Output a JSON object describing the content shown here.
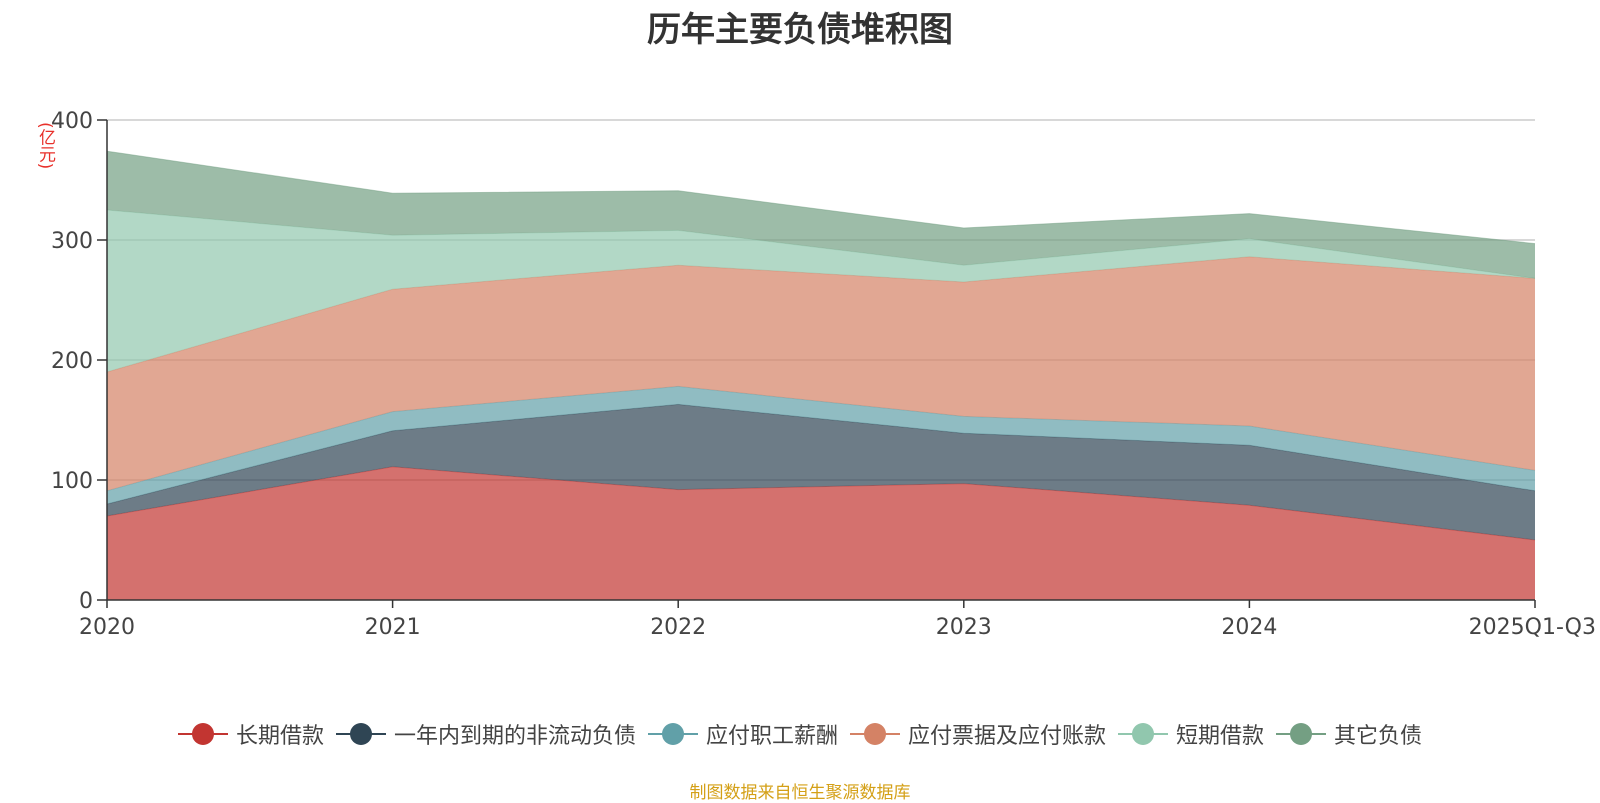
{
  "chart_data": {
    "type": "area",
    "stacked": true,
    "title": "历年主要负债堆积图",
    "y_unit_label": "(亿元)",
    "categories": [
      "2020",
      "2021",
      "2022",
      "2023",
      "2024",
      "2025Q1-Q3"
    ],
    "ylim": [
      0,
      400
    ],
    "yticks": [
      0,
      100,
      200,
      300,
      400
    ],
    "grid": true,
    "legend_position": "bottom",
    "series": [
      {
        "name": "长期借款",
        "values": [
          70,
          111,
          92,
          97,
          79,
          50
        ],
        "color": "#c23531"
      },
      {
        "name": "一年内到期的非流动负债",
        "values": [
          10,
          30,
          71,
          42,
          50,
          41
        ],
        "color": "#2f4554"
      },
      {
        "name": "应付职工薪酬",
        "values": [
          11,
          16,
          15,
          14,
          16,
          17
        ],
        "color": "#61a0a8"
      },
      {
        "name": "应付票据及应付账款",
        "values": [
          99,
          102,
          101,
          112,
          141,
          160
        ],
        "color": "#d48265"
      },
      {
        "name": "短期借款",
        "values": [
          135,
          45,
          29,
          14,
          15,
          0
        ],
        "color": "#91c7ae"
      },
      {
        "name": "其它负债",
        "values": [
          49,
          35,
          33,
          31,
          21,
          29
        ],
        "color": "#749f83"
      }
    ]
  },
  "footer": {
    "source": "制图数据来自恒生聚源数据库"
  }
}
